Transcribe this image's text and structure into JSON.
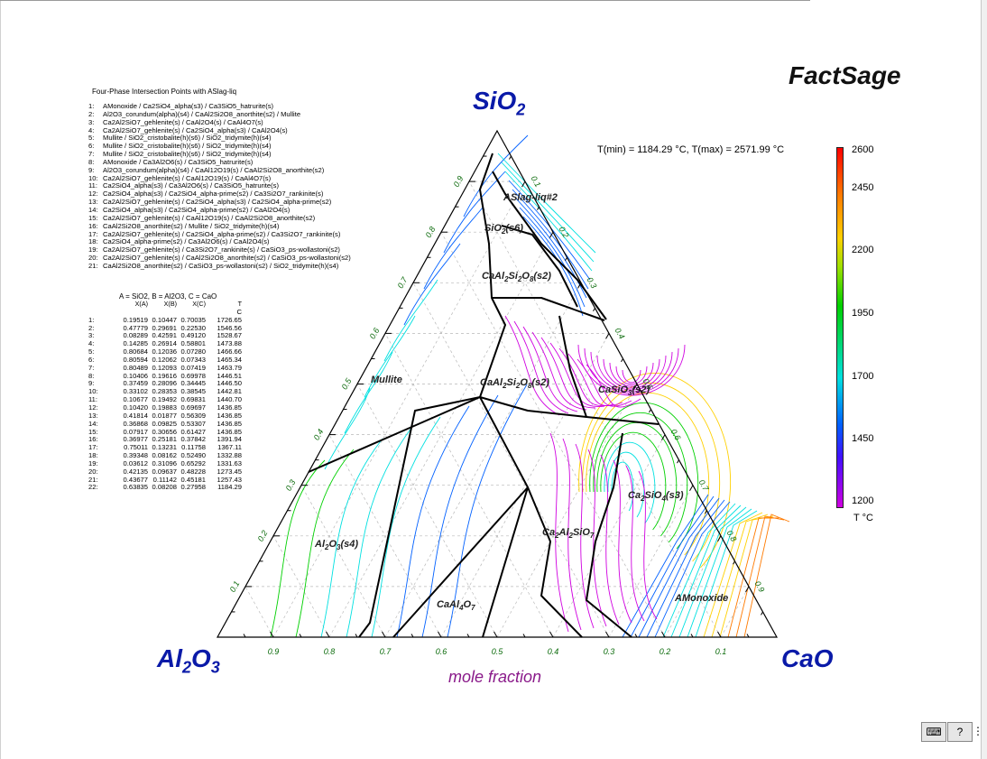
{
  "brand": "FactSage",
  "list_title": "Four-Phase Intersection Points with ASlag-liq",
  "intersection_points": [
    "AMonoxide / Ca2SiO4_alpha(s3) / Ca3SiO5_hatrurite(s)",
    "Al2O3_corundum(alpha)(s4) / CaAl2Si2O8_anorthite(s2) / Mullite",
    "Ca2Al2SiO7_gehlenite(s) / CaAl2O4(s) / CaAl4O7(s)",
    "Ca2Al2SiO7_gehlenite(s) / Ca2SiO4_alpha(s3) / CaAl2O4(s)",
    "Mullite / SiO2_cristobalite(h)(s6) / SiO2_tridymite(h)(s4)",
    "Mullite / SiO2_cristobalite(h)(s6) / SiO2_tridymite(h)(s4)",
    "Mullite / SiO2_cristobalite(h)(s6) / SiO2_tridymite(h)(s4)",
    "AMonoxide / Ca3Al2O6(s) / Ca3SiO5_hatrurite(s)",
    "Al2O3_corundum(alpha)(s4) / CaAl12O19(s) / CaAl2Si2O8_anorthite(s2)",
    "Ca2Al2SiO7_gehlenite(s) / CaAl12O19(s) / CaAl4O7(s)",
    "Ca2SiO4_alpha(s3) / Ca3Al2O6(s) / Ca3SiO5_hatrurite(s)",
    "Ca2SiO4_alpha(s3) / Ca2SiO4_alpha-prime(s2) / Ca3Si2O7_rankinite(s)",
    "Ca2Al2SiO7_gehlenite(s) / Ca2SiO4_alpha(s3) / Ca2SiO4_alpha-prime(s2)",
    "Ca2SiO4_alpha(s3) / Ca2SiO4_alpha-prime(s2) / CaAl2O4(s)",
    "Ca2Al2SiO7_gehlenite(s) / CaAl12O19(s) / CaAl2Si2O8_anorthite(s2)",
    "CaAl2Si2O8_anorthite(s2) / Mullite / SiO2_tridymite(h)(s4)",
    "Ca2Al2SiO7_gehlenite(s) / Ca2SiO4_alpha-prime(s2) / Ca3Si2O7_rankinite(s)",
    "Ca2SiO4_alpha-prime(s2) / Ca3Al2O6(s) / CaAl2O4(s)",
    "Ca2Al2SiO7_gehlenite(s) / Ca3Si2O7_rankinite(s) / CaSiO3_ps-wollastoni(s2)",
    "Ca2Al2SiO7_gehlenite(s) / CaAl2Si2O8_anorthite(s2) / CaSiO3_ps-wollastoni(s2)",
    "CaAl2Si2O8_anorthite(s2) / CaSiO3_ps-wollastoni(s2) / SiO2_tridymite(h)(s4)"
  ],
  "table": {
    "heading": "A = SiO2,  B = Al2O3,  C = CaO",
    "col_headers": [
      "X(A)",
      "X(B)",
      "X(C)",
      "T"
    ],
    "unit": "C",
    "rows": [
      [
        "0.19519",
        "0.10447",
        "0.70035",
        "1726.65"
      ],
      [
        "0.47779",
        "0.29691",
        "0.22530",
        "1546.56"
      ],
      [
        "0.08289",
        "0.42591",
        "0.49120",
        "1528.67"
      ],
      [
        "0.14285",
        "0.26914",
        "0.58801",
        "1473.88"
      ],
      [
        "0.80684",
        "0.12036",
        "0.07280",
        "1466.66"
      ],
      [
        "0.80594",
        "0.12062",
        "0.07343",
        "1465.34"
      ],
      [
        "0.80489",
        "0.12093",
        "0.07419",
        "1463.79"
      ],
      [
        "0.10406",
        "0.19616",
        "0.69978",
        "1446.51"
      ],
      [
        "0.37459",
        "0.28096",
        "0.34445",
        "1446.50"
      ],
      [
        "0.33102",
        "0.28353",
        "0.38545",
        "1442.81"
      ],
      [
        "0.10677",
        "0.19492",
        "0.69831",
        "1440.70"
      ],
      [
        "0.10420",
        "0.19883",
        "0.69697",
        "1436.85"
      ],
      [
        "0.41814",
        "0.01877",
        "0.56309",
        "1436.85"
      ],
      [
        "0.36868",
        "0.09825",
        "0.53307",
        "1436.85"
      ],
      [
        "0.07917",
        "0.30656",
        "0.61427",
        "1436.85"
      ],
      [
        "0.36977",
        "0.25181",
        "0.37842",
        "1391.94"
      ],
      [
        "0.75011",
        "0.13231",
        "0.11758",
        "1367.11"
      ],
      [
        "0.39348",
        "0.08162",
        "0.52490",
        "1332.88"
      ],
      [
        "0.03612",
        "0.31096",
        "0.65292",
        "1331.63"
      ],
      [
        "0.42135",
        "0.09637",
        "0.48228",
        "1273.45"
      ],
      [
        "0.43677",
        "0.11142",
        "0.45181",
        "1257.43"
      ],
      [
        "0.63835",
        "0.08208",
        "0.27958",
        "1184.29"
      ]
    ]
  },
  "tminmax": "T(min) = 1184.29 °C, T(max) = 2571.99 °C",
  "corners": {
    "top": "SiO",
    "top_sub": "2",
    "left": "Al",
    "left_sub1": "2",
    "left_mid": "O",
    "left_sub2": "3",
    "right": "CaO"
  },
  "x_axis_label": "mole fraction",
  "bottom_ticks": [
    "0.9",
    "0.8",
    "0.7",
    "0.6",
    "0.5",
    "0.4",
    "0.3",
    "0.2",
    "0.1"
  ],
  "left_ticks": [
    "0.1",
    "0.2",
    "0.3",
    "0.4",
    "0.5",
    "0.6",
    "0.7",
    "0.8",
    "0.9"
  ],
  "right_ticks": [
    "0.1",
    "0.2",
    "0.3",
    "0.4",
    "0.5",
    "0.6",
    "0.7",
    "0.8",
    "0.9"
  ],
  "phases": {
    "aslag": "ASlag-liq#2",
    "sio2": "SiO",
    "sio2_sub": "2",
    "sio2_tail": "(s6)",
    "anorthite_top": "CaAl",
    "anorthite_top_s1": "2",
    "anorthite_top_m": "Si",
    "anorthite_top_s2": "2",
    "anorthite_top_m2": "O",
    "anorthite_top_s3": "8",
    "anorthite_top_tail": "(s2)",
    "mullite": "Mullite",
    "anorthite": "CaAl",
    "anorthite_s1": "2",
    "anorthite_m": "Si",
    "anorthite_s2": "2",
    "anorthite_m2": "O",
    "anorthite_s3": "8",
    "anorthite_tail": "(s2)",
    "casio3": "CaSiO",
    "casio3_sub": "3",
    "casio3_tail": "(s2)",
    "ca2sio4": "Ca",
    "ca2sio4_s1": "2",
    "ca2sio4_m": "SiO",
    "ca2sio4_s2": "4",
    "ca2sio4_tail": "(s3)",
    "gehlenite": "Ca",
    "gehlenite_s1": "2",
    "gehlenite_m": "Al",
    "gehlenite_s2": "2",
    "gehlenite_m2": "SiO",
    "gehlenite_s3": "7",
    "al2o3": "Al",
    "al2o3_s1": "2",
    "al2o3_m": "O",
    "al2o3_s2": "3",
    "al2o3_tail": "(s4)",
    "caal4o7": "CaAl",
    "caal4o7_s1": "4",
    "caal4o7_m": "O",
    "caal4o7_s2": "7",
    "amonoxide": "AMonoxide"
  },
  "colorbar": {
    "ticks": [
      "2600",
      "2450",
      "2200",
      "1950",
      "1700",
      "1450",
      "1200"
    ],
    "unit": "T °C",
    "colors": [
      "#ff0000",
      "#ff7a00",
      "#ffd000",
      "#00d000",
      "#00e0e0",
      "#0060ff",
      "#d000e0"
    ]
  },
  "status_icons": [
    "keyboard-icon",
    "help-icon"
  ],
  "help_glyph": "?",
  "more_glyph": "⋮",
  "colors": {
    "corner": "#0a1aa8",
    "axis_label": "#8a1a8a",
    "tick_text": "#0a6a0a",
    "boundary": "#000000"
  }
}
